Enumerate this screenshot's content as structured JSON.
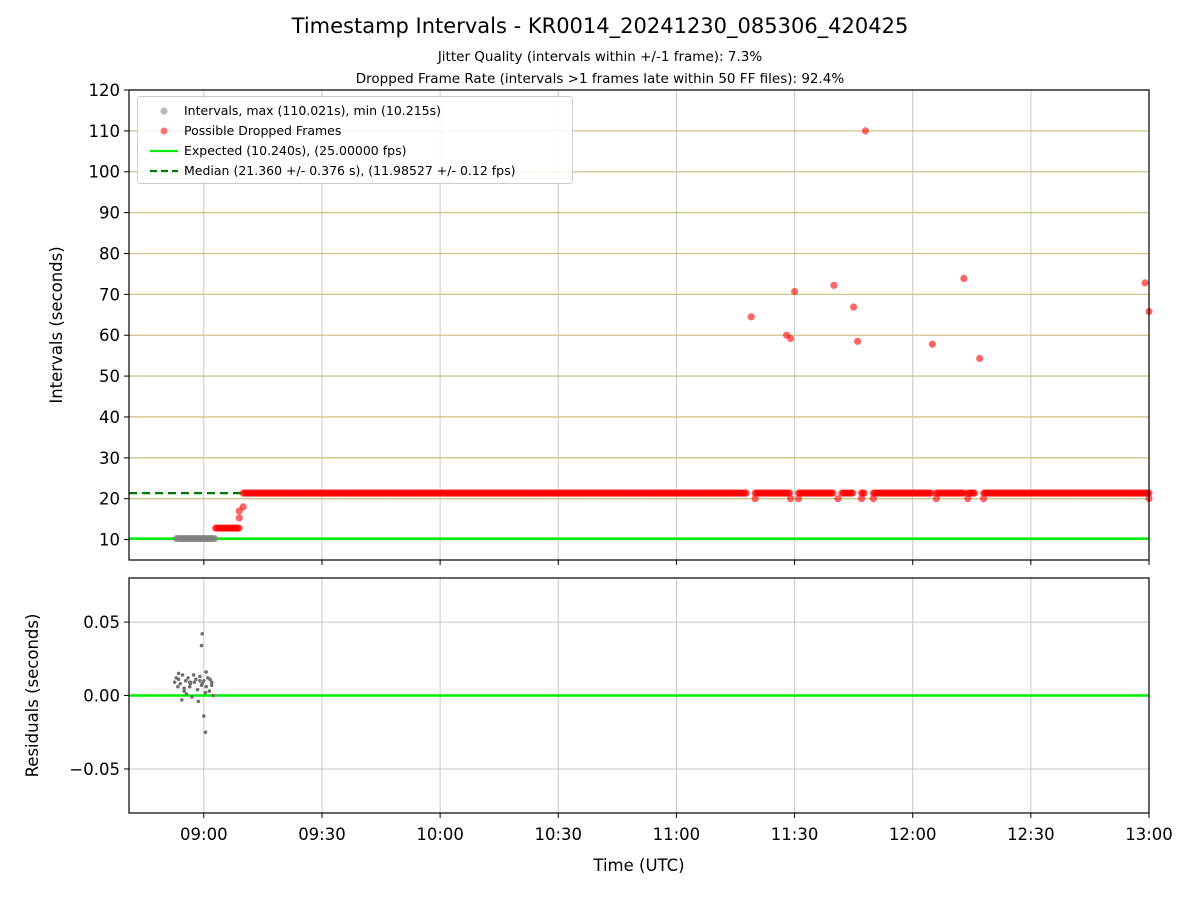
{
  "chart_data": {
    "title": "Timestamp Intervals - KR0014_20241230_085306_420425",
    "subtitle_1": "Jitter Quality (intervals within +/-1 frame): 7.3%",
    "subtitle_2": "Dropped Frame Rate (intervals >1 frames late within 50 FF files): 92.4%",
    "x_axis": {
      "label": "Time (UTC)",
      "ticks": [
        "09:00",
        "09:30",
        "10:00",
        "10:30",
        "11:00",
        "11:30",
        "12:00",
        "12:30",
        "13:00"
      ],
      "range": [
        "08:41",
        "13:00"
      ]
    },
    "top_panel": {
      "type": "scatter",
      "ylabel": "Intervals (seconds)",
      "ylim": [
        5,
        120
      ],
      "yticks": [
        10,
        20,
        30,
        40,
        50,
        60,
        70,
        80,
        90,
        100,
        110,
        120
      ],
      "grid": true,
      "legend_position": "top-left",
      "legend": [
        "Intervals, max (110.021s), min (10.215s)",
        "Possible Dropped Frames",
        "Expected (10.240s), (25.00000 fps)",
        "Median (21.360 +/- 0.376 s), (11.98527 +/- 0.12 fps)"
      ],
      "expected_line": 10.24,
      "median_line": {
        "value": 21.36,
        "x_start": "08:41",
        "x_end": "09:10"
      },
      "normal_intervals": {
        "x_start": "08:53",
        "x_end": "09:03",
        "y": 10.24
      },
      "dropped_bands": [
        {
          "x_start": "09:03",
          "x_end": "09:09",
          "y": 12.8
        },
        {
          "x_start": "09:10",
          "x_end": "11:18",
          "y": 21.36
        },
        {
          "x_start": "11:20",
          "x_end": "11:29",
          "y": 21.36
        },
        {
          "x_start": "11:31",
          "x_end": "11:40",
          "y": 21.36
        },
        {
          "x_start": "11:42",
          "x_end": "11:45",
          "y": 21.36
        },
        {
          "x_start": "11:47",
          "x_end": "11:48",
          "y": 21.36
        },
        {
          "x_start": "11:50",
          "x_end": "12:05",
          "y": 21.36
        },
        {
          "x_start": "12:06",
          "x_end": "12:13",
          "y": 21.36
        },
        {
          "x_start": "12:14",
          "x_end": "12:16",
          "y": 21.36
        },
        {
          "x_start": "12:18",
          "x_end": "13:00",
          "y": 21.36
        }
      ],
      "dropped_points": [
        {
          "t": "09:09",
          "y": 15.3
        },
        {
          "t": "09:09",
          "y": 17.0
        },
        {
          "t": "09:10",
          "y": 18.0
        },
        {
          "t": "11:19",
          "y": 64.5
        },
        {
          "t": "11:20",
          "y": 20.0
        },
        {
          "t": "11:28",
          "y": 60.0
        },
        {
          "t": "11:29",
          "y": 59.2
        },
        {
          "t": "11:29",
          "y": 20.0
        },
        {
          "t": "11:30",
          "y": 70.7
        },
        {
          "t": "11:31",
          "y": 20.0
        },
        {
          "t": "11:40",
          "y": 72.2
        },
        {
          "t": "11:41",
          "y": 20.0
        },
        {
          "t": "11:45",
          "y": 66.9
        },
        {
          "t": "11:46",
          "y": 58.5
        },
        {
          "t": "11:47",
          "y": 20.0
        },
        {
          "t": "11:48",
          "y": 110.0
        },
        {
          "t": "11:50",
          "y": 20.0
        },
        {
          "t": "12:05",
          "y": 57.8
        },
        {
          "t": "12:06",
          "y": 20.0
        },
        {
          "t": "12:13",
          "y": 73.9
        },
        {
          "t": "12:14",
          "y": 20.0
        },
        {
          "t": "12:17",
          "y": 54.3
        },
        {
          "t": "12:18",
          "y": 20.0
        },
        {
          "t": "12:59",
          "y": 72.8
        },
        {
          "t": "13:00",
          "y": 20.0
        },
        {
          "t": "13:00",
          "y": 65.8
        }
      ]
    },
    "bottom_panel": {
      "type": "scatter",
      "ylabel": "Residuals (seconds)",
      "ylim": [
        -0.08,
        0.08
      ],
      "yticks": [
        0.05,
        0.0,
        -0.05
      ],
      "ytick_labels": [
        "0.05",
        "0.00",
        "−0.05"
      ],
      "zero_line": 0.0,
      "grid": true,
      "points": [
        {
          "t": "08:53",
          "y": 0.009
        },
        {
          "t": "08:53",
          "y": 0.012
        },
        {
          "t": "08:53",
          "y": 0.006
        },
        {
          "t": "08:54",
          "y": 0.015
        },
        {
          "t": "08:54",
          "y": 0.008
        },
        {
          "t": "08:54",
          "y": -0.003
        },
        {
          "t": "08:54",
          "y": 0.011
        },
        {
          "t": "08:55",
          "y": 0.003
        },
        {
          "t": "08:55",
          "y": 0.01
        },
        {
          "t": "08:55",
          "y": 0.014
        },
        {
          "t": "08:55",
          "y": 0.005
        },
        {
          "t": "08:56",
          "y": 0.009
        },
        {
          "t": "08:56",
          "y": 0.001
        },
        {
          "t": "08:56",
          "y": 0.012
        },
        {
          "t": "08:56",
          "y": 0.006
        },
        {
          "t": "08:57",
          "y": 0.008
        },
        {
          "t": "08:57",
          "y": -0.001
        },
        {
          "t": "08:57",
          "y": 0.014
        },
        {
          "t": "08:57",
          "y": 0.009
        },
        {
          "t": "08:58",
          "y": 0.011
        },
        {
          "t": "08:58",
          "y": 0.004
        },
        {
          "t": "08:58",
          "y": 0.009
        },
        {
          "t": "08:59",
          "y": 0.013
        },
        {
          "t": "08:59",
          "y": 0.007
        },
        {
          "t": "08:59",
          "y": -0.004
        },
        {
          "t": "08:59",
          "y": 0.01
        },
        {
          "t": "08:59",
          "y": 0.034
        },
        {
          "t": "09:00",
          "y": 0.008
        },
        {
          "t": "09:00",
          "y": -0.014
        },
        {
          "t": "09:00",
          "y": 0.002
        },
        {
          "t": "09:00",
          "y": 0.042
        },
        {
          "t": "09:00",
          "y": 0.01
        },
        {
          "t": "09:00",
          "y": -0.025
        },
        {
          "t": "09:01",
          "y": 0.006
        },
        {
          "t": "09:01",
          "y": 0.012
        },
        {
          "t": "09:01",
          "y": 0.003
        },
        {
          "t": "09:01",
          "y": 0.016
        },
        {
          "t": "09:02",
          "y": 0.009
        },
        {
          "t": "09:02",
          "y": 0.0
        },
        {
          "t": "09:02",
          "y": 0.011
        },
        {
          "t": "09:02",
          "y": 0.007
        }
      ]
    },
    "colors": {
      "normal_points": "#808080",
      "dropped_points": "#ff0000",
      "expected_line": "#00ee00",
      "median_line": "#007a00",
      "hgrid_top": "#d2c38a",
      "vgrid": "#c8c8c8",
      "hgrid_bottom": "#c8c8c8"
    }
  }
}
